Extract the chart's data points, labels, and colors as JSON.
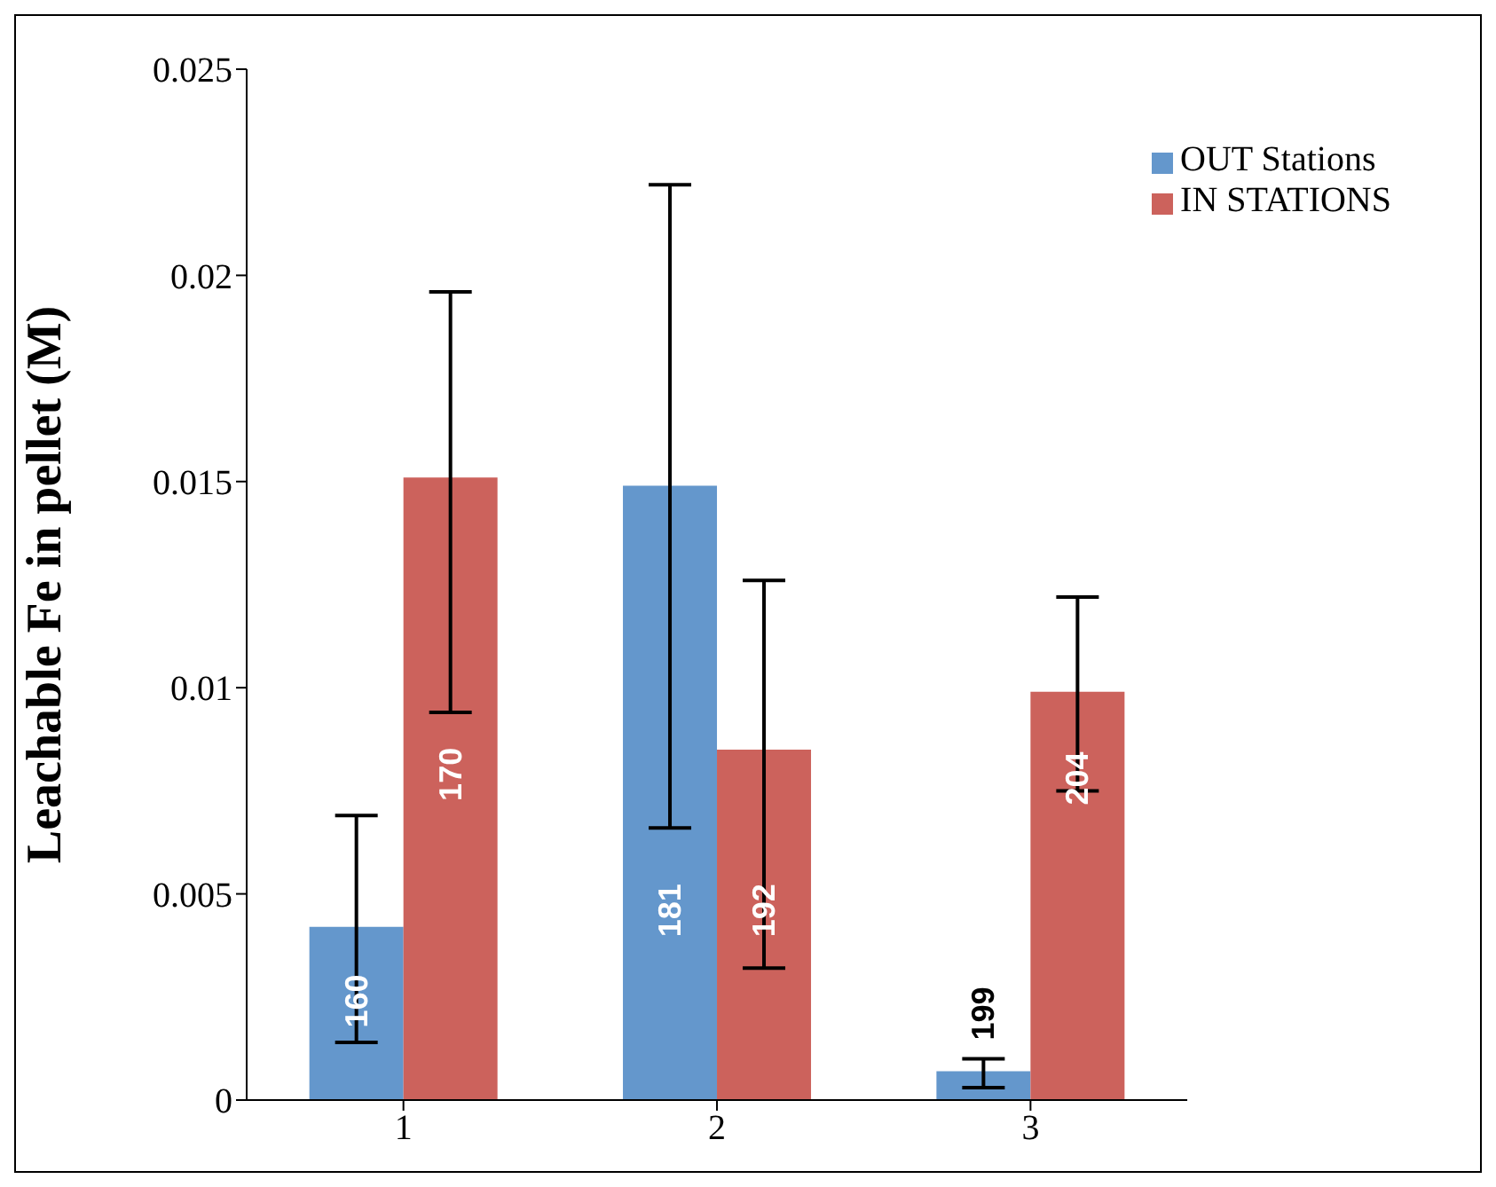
{
  "chart_data": {
    "type": "bar",
    "ylabel": "Leachable Fe in pellet (M)",
    "categories": [
      "1",
      "2",
      "3"
    ],
    "series": [
      {
        "name": "OUT Stations",
        "color": "#6497cc",
        "values": [
          0.0042,
          0.0149,
          0.0007
        ],
        "errors": [
          [
            0.0014,
            0.0069
          ],
          [
            0.0066,
            0.0222
          ],
          [
            0.0003,
            0.001
          ]
        ]
      },
      {
        "name": "IN STATIONS",
        "color": "#cc625c",
        "values": [
          0.0151,
          0.0085,
          0.0099
        ],
        "errors": [
          [
            0.0094,
            0.0196
          ],
          [
            0.0032,
            0.0126
          ],
          [
            0.0075,
            0.0122
          ]
        ]
      }
    ],
    "annotations": [
      {
        "text": "160",
        "x": "1",
        "y": 0.0024
      },
      {
        "text": "170",
        "x": "1",
        "y": 0.0079
      },
      {
        "text": "181",
        "x": "2",
        "y": 0.0046
      },
      {
        "text": "192",
        "x": "2",
        "y": 0.0046
      },
      {
        "text": "199",
        "x": "3",
        "y": 0.0021
      },
      {
        "text": "204",
        "x": "3",
        "y": 0.0078
      }
    ],
    "ylim": [
      0,
      0.025
    ],
    "yticks": [
      0,
      0.005,
      0.01,
      0.015,
      0.02,
      0.025
    ],
    "grid": false,
    "legend": "top right"
  }
}
